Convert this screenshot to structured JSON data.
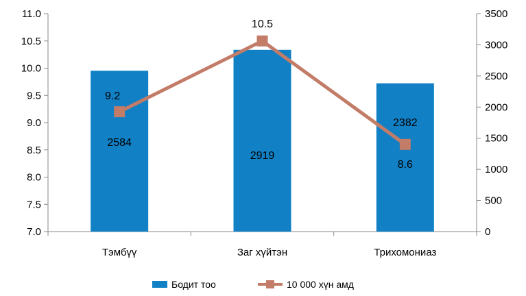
{
  "chart_data": {
    "type": "bar",
    "title": "",
    "categories": [
      "Тэмбүү",
      "Заг хүйтэн",
      "Трихомониаз"
    ],
    "series": [
      {
        "name": "Бодит тоо",
        "kind": "bar",
        "axis": "right",
        "color": "#1180c4",
        "values": [
          2584,
          2919,
          2382
        ],
        "labels": [
          "2584",
          "2919",
          "2382"
        ]
      },
      {
        "name": "10 000 хүн амд",
        "kind": "line",
        "axis": "left",
        "color": "#c27c68",
        "values": [
          9.2,
          10.5,
          8.6
        ],
        "labels": [
          "9.2",
          "10.5",
          "8.6"
        ]
      }
    ],
    "y_left": {
      "min": 7.0,
      "max": 11.0,
      "ticks": [
        "7.0",
        "7.5",
        "8.0",
        "8.5",
        "9.0",
        "9.5",
        "10.0",
        "10.5",
        "11.0"
      ]
    },
    "y_right": {
      "min": 0,
      "max": 3500,
      "ticks": [
        "0",
        "500",
        "1000",
        "1500",
        "2000",
        "2500",
        "3000",
        "3500"
      ]
    },
    "grid": false,
    "legend": "bottom"
  }
}
